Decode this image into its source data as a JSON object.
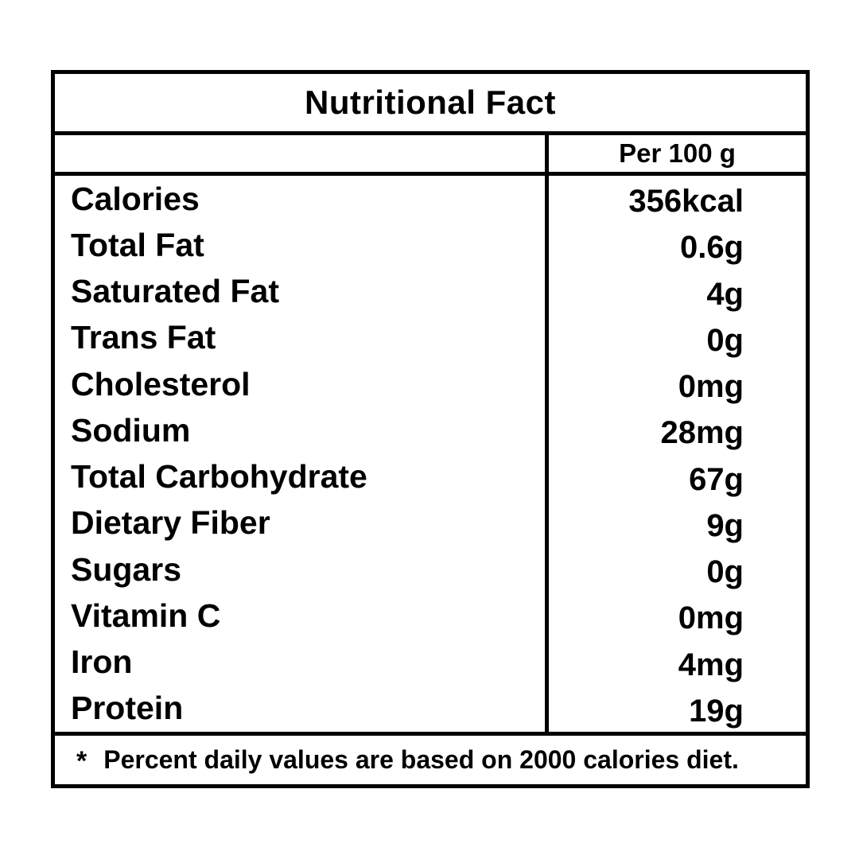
{
  "page": {
    "background_color": "#ffffff",
    "text_color": "#000000",
    "border_color": "#000000"
  },
  "table": {
    "title": "Nutritional Fact",
    "column_header": "Per 100 g",
    "rows": [
      {
        "label": "Calories",
        "value": "356kcal"
      },
      {
        "label": "Total Fat",
        "value": "0.6g"
      },
      {
        "label": "Saturated Fat",
        "value": "4g"
      },
      {
        "label": "Trans Fat",
        "value": "0g"
      },
      {
        "label": "Cholesterol",
        "value": "0mg"
      },
      {
        "label": "Sodium",
        "value": "28mg"
      },
      {
        "label": "Total Carbohydrate",
        "value": "67g"
      },
      {
        "label": "Dietary Fiber",
        "value": "9g"
      },
      {
        "label": "Sugars",
        "value": "0g"
      },
      {
        "label": "Vitamin C",
        "value": "0mg"
      },
      {
        "label": "Iron",
        "value": "4mg"
      },
      {
        "label": "Protein",
        "value": "19g"
      }
    ],
    "footnote_marker": "*",
    "footnote": "Percent daily values are based on 2000 calories diet."
  }
}
